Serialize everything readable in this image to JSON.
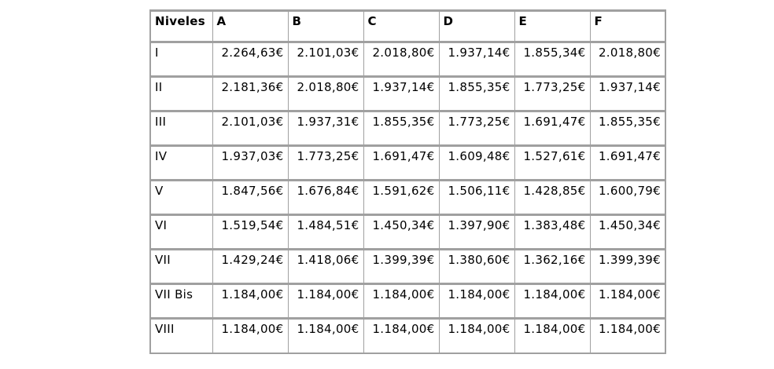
{
  "colors": {
    "border": "#a0a0a0",
    "text": "#000000",
    "page_background": "#ffffff"
  },
  "table": {
    "columns": [
      "Niveles",
      "A",
      "B",
      "C",
      "D",
      "E",
      "F"
    ],
    "rows": [
      {
        "level": "I",
        "values": [
          "2.264,63€",
          "2.101,03€",
          "2.018,80€",
          "1.937,14€",
          "1.855,34€",
          "2.018,80€"
        ]
      },
      {
        "level": "II",
        "values": [
          "2.181,36€",
          "2.018,80€",
          "1.937,14€",
          "1.855,35€",
          "1.773,25€",
          "1.937,14€"
        ]
      },
      {
        "level": "III",
        "values": [
          "2.101,03€",
          "1.937,31€",
          "1.855,35€",
          "1.773,25€",
          "1.691,47€",
          "1.855,35€"
        ]
      },
      {
        "level": "IV",
        "values": [
          "1.937,03€",
          "1.773,25€",
          "1.691,47€",
          "1.609,48€",
          "1.527,61€",
          "1.691,47€"
        ]
      },
      {
        "level": "V",
        "values": [
          "1.847,56€",
          "1.676,84€",
          "1.591,62€",
          "1.506,11€",
          "1.428,85€",
          "1.600,79€"
        ]
      },
      {
        "level": "VI",
        "values": [
          "1.519,54€",
          "1.484,51€",
          "1.450,34€",
          "1.397,90€",
          "1.383,48€",
          "1.450,34€"
        ]
      },
      {
        "level": "VII",
        "values": [
          "1.429,24€",
          "1.418,06€",
          "1.399,39€",
          "1.380,60€",
          "1.362,16€",
          "1.399,39€"
        ]
      },
      {
        "level": "VII Bis",
        "values": [
          "1.184,00€",
          "1.184,00€",
          "1.184,00€",
          "1.184,00€",
          "1.184,00€",
          "1.184,00€"
        ]
      },
      {
        "level": "VIII",
        "values": [
          "1.184,00€",
          "1.184,00€",
          "1.184,00€",
          "1.184,00€",
          "1.184,00€",
          "1.184,00€"
        ]
      }
    ]
  }
}
